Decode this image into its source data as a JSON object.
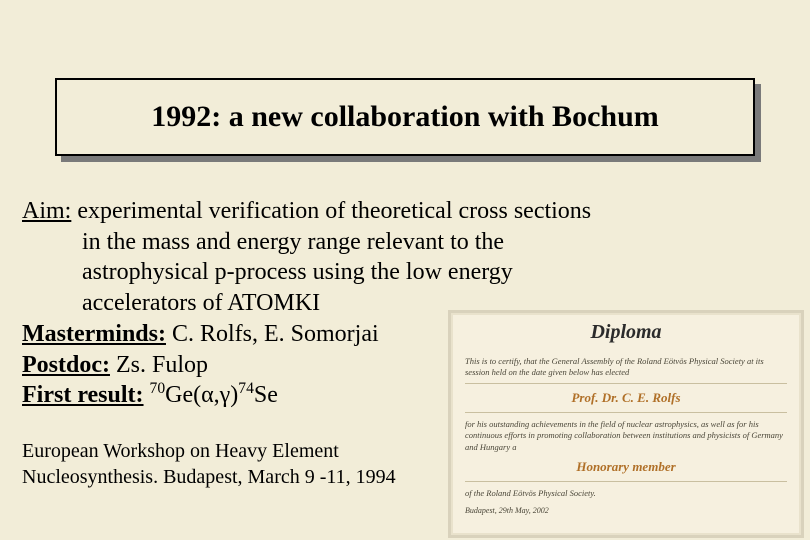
{
  "colors": {
    "background": "#f2edd8",
    "title_border": "#000000",
    "title_shadow": "#7a7a7a",
    "text": "#000000",
    "diploma_bg": "#f6f0df",
    "diploma_border": "#d9d2bc",
    "diploma_accent": "#b07028",
    "diploma_rule": "#c9bfa0",
    "diploma_text": "#4a4638"
  },
  "title": "1992: a new collaboration with  Bochum",
  "aim": {
    "label": "Aim:",
    "line1": " experimental verification of theoretical cross sections",
    "line2": "in the mass and energy range relevant to the",
    "line3": "astrophysical p-process using the  low energy",
    "line4": "accelerators of ATOMKI"
  },
  "masterminds": {
    "label": "Masterminds:",
    "value": " C. Rolfs, E. Somorjai"
  },
  "postdoc": {
    "label": "Postdoc:",
    "value": " Zs. Fulop"
  },
  "first_result": {
    "label": "First result:",
    "prefix": " ",
    "sup1": "70",
    "mid1": "Ge(α,γ)",
    "sup2": "74",
    "mid2": "Se"
  },
  "footnote": {
    "line1": "European Workshop on Heavy Element",
    "line2": "Nucleosynthesis. Budapest, March 9 -11, 1994"
  },
  "diploma": {
    "title": "Diploma",
    "cert_line": "This is to certify, that the General Assembly of the Roland Eötvös Physical Society at its session held on the date given below has elected",
    "name": "Prof. Dr. C. E. Rolfs",
    "citation": "for his outstanding achievements in the field of nuclear astrophysics, as well as for his continuous efforts in promoting collaboration between institutions and physicists of Germany and Hungary a",
    "honor": "Honorary member",
    "society": "of the Roland Eötvös Physical Society.",
    "footer": "Budapest, 29th May, 2002"
  }
}
